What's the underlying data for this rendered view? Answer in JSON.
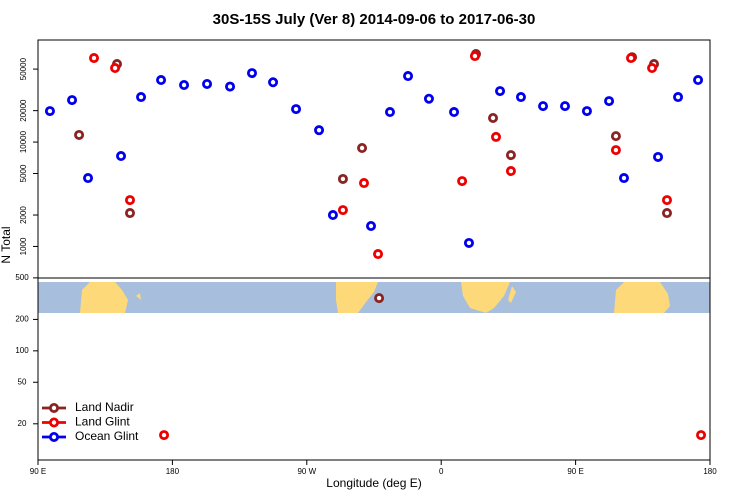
{
  "chart_data": {
    "type": "scatter",
    "title": "30S-15S July (Ver 8)   2014-09-06 to 2017-06-30",
    "x_label": "Longitude (deg E)",
    "y_label": "N Total",
    "log_y": true,
    "legend": "lower left",
    "xlim": [
      90,
      540
    ],
    "ylim": [
      9,
      95000
    ],
    "xticks": [
      {
        "value": 90,
        "label": "90 E"
      },
      180,
      {
        "value": 270,
        "label": "90 W"
      },
      {
        "value": 360,
        "label": "0"
      },
      {
        "value": 450,
        "label": "90 E"
      },
      {
        "value": 540,
        "label": "180"
      }
    ],
    "yticks": [
      20,
      50,
      100,
      200,
      500,
      1000,
      2000,
      5000,
      10000,
      20000,
      50000
    ],
    "series": [
      {
        "name": "Land Nadir",
        "color": "#8b2323",
        "x": [
          117.5,
          142.9,
          151.6,
          294.2,
          307,
          318.4,
          383.3,
          394.7,
          406.7,
          477,
          487.8,
          502.5,
          511.2
        ],
        "values": [
          11700,
          55900,
          2090,
          4430,
          8770,
          320,
          69700,
          17000,
          7500,
          11400,
          65000,
          55900,
          2090
        ]
      },
      {
        "name": "Land Glint",
        "color": "#ee0000",
        "x": [
          127.5,
          141.6,
          151.6,
          174.4,
          294.2,
          308.3,
          317.7,
          374,
          382.6,
          396.7,
          406.7,
          477,
          487.1,
          501.2,
          511.2,
          534
        ],
        "values": [
          63800,
          51200,
          2780,
          15.6,
          2230,
          4050,
          846,
          4230,
          66700,
          11200,
          5280,
          8380,
          63800,
          51200,
          2780,
          15.6
        ]
      },
      {
        "name": "Ocean Glint",
        "color": "#0000ee",
        "x": [
          98,
          112.8,
          123.5,
          145.6,
          159,
          172.4,
          187.8,
          203.2,
          218.6,
          233.3,
          247.4,
          262.8,
          278.2,
          287.5,
          313,
          325.7,
          337.8,
          351.8,
          368.6,
          378.6,
          399.4,
          413.4,
          428.2,
          442.9,
          457.6,
          472.4,
          482.4,
          505.2,
          518.6,
          532
        ],
        "values": [
          19800,
          25250,
          4520,
          7350,
          27000,
          39300,
          35200,
          36000,
          34000,
          45800,
          37400,
          20700,
          13000,
          2000,
          1570,
          19400,
          42900,
          26000,
          19400,
          1080,
          30800,
          27000,
          22100,
          22100,
          19800,
          24700,
          4520,
          7200,
          27000,
          39300
        ]
      }
    ]
  }
}
